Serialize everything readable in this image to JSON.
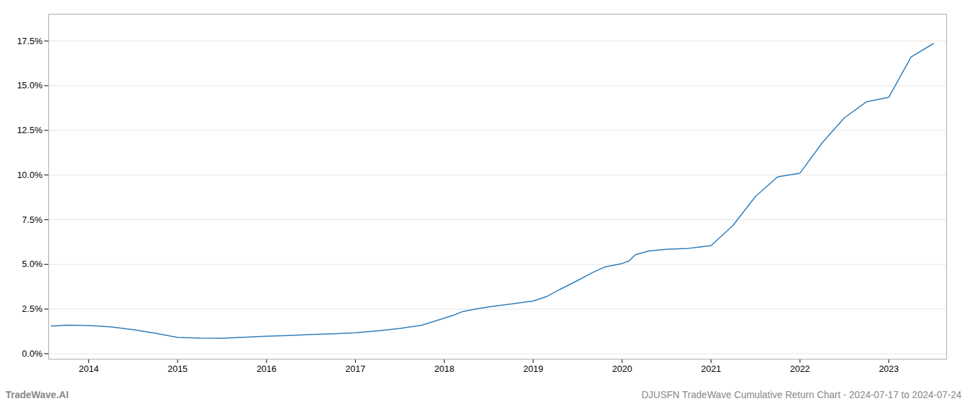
{
  "chart_data": {
    "type": "line",
    "title": "DJUSFN TradeWave Cumulative Return Chart - 2024-07-17 to 2024-07-24",
    "annotations": [
      "TradeWave.AI"
    ],
    "color": "#2b7bba",
    "grid": "y",
    "x": [
      2013.58,
      2013.75,
      2014.0,
      2014.25,
      2014.5,
      2014.75,
      2015.0,
      2015.25,
      2015.5,
      2015.75,
      2016.0,
      2016.25,
      2016.5,
      2016.75,
      2017.0,
      2017.25,
      2017.5,
      2017.75,
      2018.0,
      2018.1,
      2018.2,
      2018.35,
      2018.5,
      2018.65,
      2018.8,
      2019.0,
      2019.15,
      2019.3,
      2019.5,
      2019.65,
      2019.8,
      2020.0,
      2020.08,
      2020.15,
      2020.3,
      2020.5,
      2020.75,
      2021.0,
      2021.25,
      2021.5,
      2021.75,
      2022.0,
      2022.25,
      2022.5,
      2022.75,
      2023.0,
      2023.25,
      2023.5
    ],
    "values": [
      1.55,
      1.6,
      1.58,
      1.5,
      1.35,
      1.15,
      0.92,
      0.88,
      0.87,
      0.93,
      0.98,
      1.02,
      1.08,
      1.12,
      1.18,
      1.28,
      1.42,
      1.6,
      2.0,
      2.15,
      2.35,
      2.5,
      2.62,
      2.72,
      2.82,
      2.95,
      3.2,
      3.6,
      4.1,
      4.5,
      4.85,
      5.05,
      5.2,
      5.55,
      5.75,
      5.85,
      5.9,
      6.05,
      7.2,
      8.8,
      9.9,
      10.1,
      11.8,
      13.2,
      14.1,
      14.35,
      16.6,
      17.35
    ],
    "xlim": [
      2013.55,
      2023.65
    ],
    "xticks": [
      2014,
      2015,
      2016,
      2017,
      2018,
      2019,
      2020,
      2021,
      2022,
      2023
    ],
    "ylim": [
      -0.3,
      19.0
    ],
    "yticks": [
      {
        "value": 0.0,
        "label": "0.0%"
      },
      {
        "value": 2.5,
        "label": "2.5%"
      },
      {
        "value": 5.0,
        "label": "5.0%"
      },
      {
        "value": 7.5,
        "label": "7.5%"
      },
      {
        "value": 10.0,
        "label": "10.0%"
      },
      {
        "value": 12.5,
        "label": "12.5%"
      },
      {
        "value": 15.0,
        "label": "15.0%"
      },
      {
        "value": 17.5,
        "label": "17.5%"
      }
    ]
  }
}
